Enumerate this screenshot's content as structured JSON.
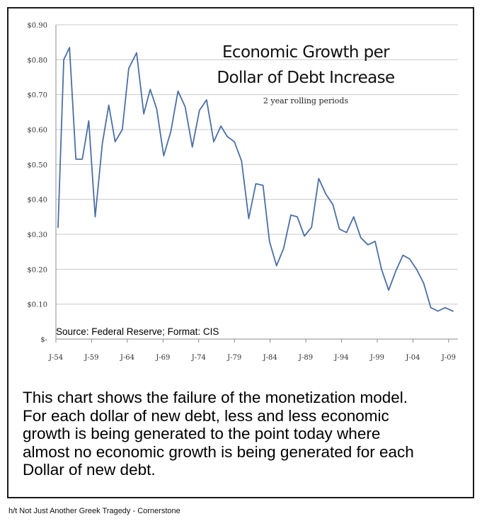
{
  "chart_data": {
    "type": "line",
    "title": "Economic Growth per Dollar of Debt Increase",
    "subtitle": "2 year rolling periods",
    "source_note": "Source: Federal Reserve; Format: CIS",
    "ylim": [
      0,
      0.9
    ],
    "yticks": [
      0.9,
      0.8,
      0.7,
      0.6,
      0.5,
      0.4,
      0.3,
      0.2,
      0.1,
      0
    ],
    "ytick_labels": [
      "$0.90",
      "$0.80",
      "$0.70",
      "$0.60",
      "$0.50",
      "$0.40",
      "$0.30",
      "$0.20",
      "$0.10",
      "$-"
    ],
    "xlim": [
      1954,
      2010.3
    ],
    "xticks": [
      1954,
      1959,
      1964,
      1969,
      1974,
      1979,
      1984,
      1989,
      1994,
      1999,
      2004,
      2009
    ],
    "xtick_labels": [
      "J-54",
      "J-59",
      "J-64",
      "J-69",
      "J-74",
      "J-79",
      "J-84",
      "J-89",
      "J-94",
      "J-99",
      "J-04",
      "J-09"
    ],
    "grid": true,
    "line_color": "#4a6fa5",
    "series": [
      {
        "name": "Economic growth per dollar of debt increase",
        "x": [
          1954.3,
          1955.1,
          1955.9,
          1956.8,
          1957.7,
          1958.6,
          1959.5,
          1960.5,
          1961.4,
          1962.3,
          1963.3,
          1964.2,
          1965.3,
          1966.3,
          1967.2,
          1968.1,
          1969.1,
          1970.1,
          1971.1,
          1972.1,
          1973.1,
          1974.1,
          1975.1,
          1976.1,
          1977.1,
          1978.0,
          1979.0,
          1980.0,
          1981.0,
          1982.0,
          1983.0,
          1983.9,
          1984.9,
          1985.9,
          1986.9,
          1987.8,
          1988.8,
          1989.8,
          1990.8,
          1991.8,
          1992.8,
          1993.7,
          1994.7,
          1995.7,
          1996.7,
          1997.7,
          1998.7,
          1999.6,
          2000.6,
          2001.6,
          2002.6,
          2003.5,
          2004.5,
          2005.5,
          2006.5,
          2007.5,
          2008.5,
          2009.6
        ],
        "values": [
          0.32,
          0.8,
          0.835,
          0.515,
          0.515,
          0.625,
          0.35,
          0.56,
          0.67,
          0.565,
          0.6,
          0.775,
          0.82,
          0.645,
          0.715,
          0.66,
          0.525,
          0.595,
          0.71,
          0.665,
          0.55,
          0.655,
          0.685,
          0.565,
          0.61,
          0.58,
          0.565,
          0.51,
          0.345,
          0.445,
          0.44,
          0.28,
          0.21,
          0.26,
          0.355,
          0.35,
          0.295,
          0.32,
          0.46,
          0.415,
          0.385,
          0.315,
          0.305,
          0.35,
          0.29,
          0.27,
          0.28,
          0.2,
          0.14,
          0.195,
          0.24,
          0.23,
          0.2,
          0.16,
          0.09,
          0.08,
          0.09,
          0.08
        ]
      }
    ]
  },
  "caption_lines": [
    "This chart shows the failure of the monetization model.",
    "For each dollar of new debt, less and less economic",
    "growth is being generated to the point today where",
    "almost no economic growth is being generated for each",
    "Dollar of new debt."
  ],
  "credit": "h/t Not Just Another Greek Tragedy - Cornerstone"
}
